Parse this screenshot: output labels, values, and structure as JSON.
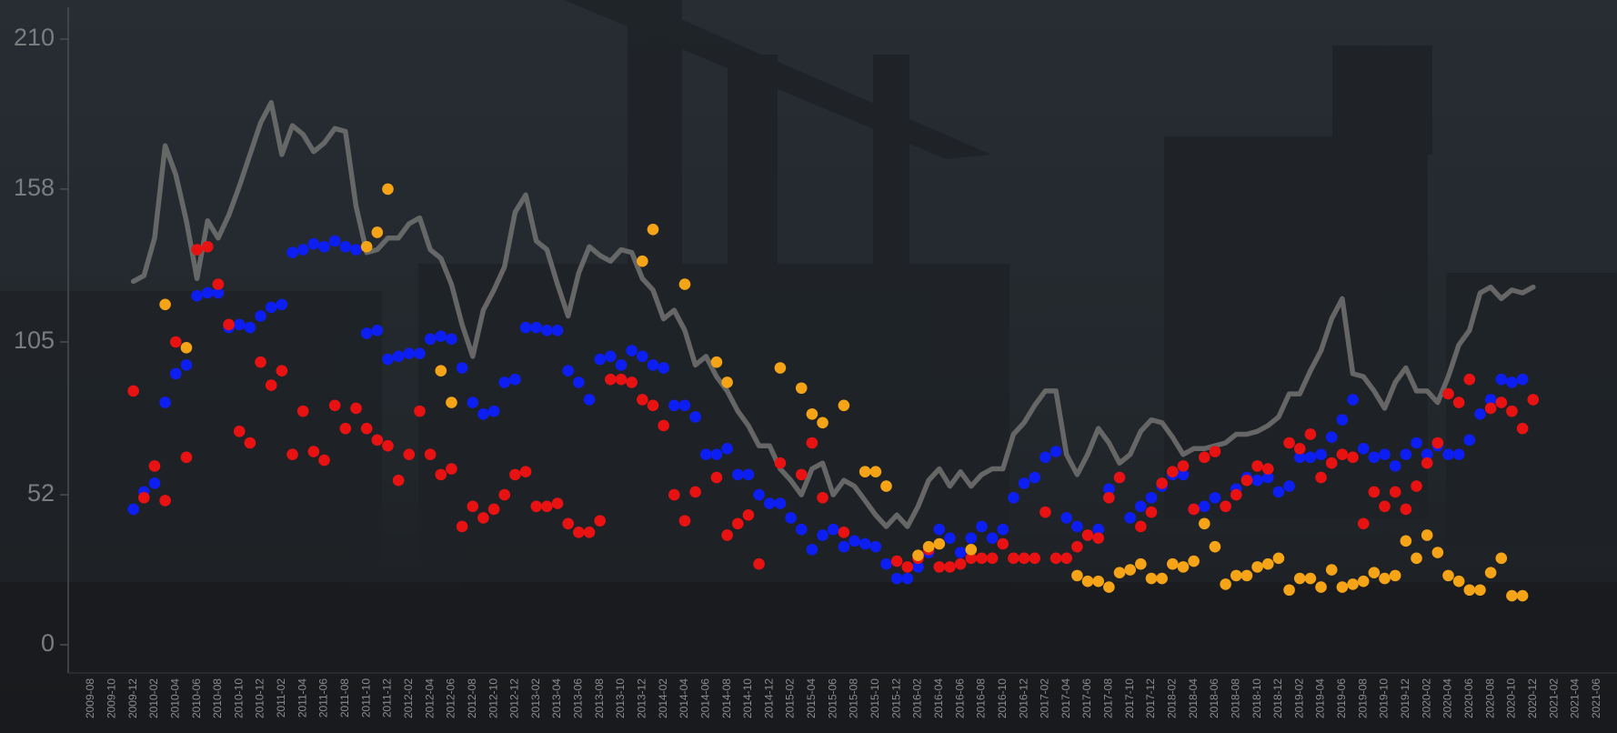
{
  "chart_data": {
    "type": "line-scatter",
    "categories": [
      "2009-08",
      null,
      "2009-10",
      null,
      "2009-12",
      null,
      "2010-02",
      null,
      "2010-04",
      null,
      "2010-06",
      null,
      "2010-08",
      null,
      "2010-10",
      null,
      "2010-12",
      null,
      "2011-02",
      null,
      "2011-04",
      null,
      "2011-06",
      null,
      "2011-08",
      null,
      "2011-10",
      null,
      "2011-12",
      null,
      "2012-02",
      null,
      "2012-04",
      null,
      "2012-06",
      null,
      "2012-08",
      null,
      "2012-10",
      null,
      "2012-12",
      null,
      "2013-02",
      null,
      "2013-04",
      null,
      "2013-06",
      null,
      "2013-08",
      null,
      "2013-10",
      null,
      "2013-12",
      null,
      "2014-02",
      null,
      "2014-04",
      null,
      "2014-06",
      null,
      "2014-08",
      null,
      "2014-10",
      null,
      "2014-12",
      null,
      "2015-02",
      null,
      "2015-04",
      null,
      "2015-06",
      null,
      "2015-08",
      null,
      "2015-10",
      null,
      "2015-12",
      null,
      "2016-02",
      null,
      "2016-04",
      null,
      "2016-06",
      null,
      "2016-08",
      null,
      "2016-10",
      null,
      "2016-12",
      null,
      "2017-02",
      null,
      "2017-04",
      null,
      "2017-06",
      null,
      "2017-08",
      null,
      "2017-10",
      null,
      "2017-12",
      null,
      "2018-02",
      null,
      "2018-04",
      null,
      "2018-06",
      null,
      "2018-08",
      null,
      "2018-10",
      null,
      "2018-12",
      null,
      "2019-02",
      null,
      "2019-04",
      null,
      "2019-06",
      null,
      "2019-08",
      null,
      "2019-10",
      null,
      "2019-12",
      null,
      "2020-02",
      null,
      "2020-04",
      null,
      "2020-06",
      null,
      "2020-08",
      null,
      "2020-10",
      null,
      "2020-12",
      null,
      "2021-02",
      null,
      "2021-04",
      null,
      "2021-06"
    ],
    "series": [
      {
        "kind": "line",
        "color": "#6e6e6e",
        "values": [
          null,
          null,
          null,
          null,
          126,
          128,
          141,
          173,
          163,
          147,
          127,
          147,
          141,
          149,
          159,
          170,
          181,
          188,
          170,
          180,
          177,
          171,
          174,
          179,
          178,
          152,
          136,
          137,
          141,
          141,
          146,
          148,
          137,
          134,
          125,
          111,
          100,
          116,
          123,
          131,
          150,
          156,
          140,
          137,
          125,
          114,
          129,
          138,
          135,
          133,
          137,
          136,
          127,
          123,
          113,
          116,
          109,
          97,
          100,
          93,
          88,
          81,
          76,
          69,
          69,
          61,
          57,
          52,
          61,
          63,
          52,
          57,
          55,
          50,
          45,
          41,
          45,
          41,
          48,
          57,
          61,
          55,
          60,
          55,
          59,
          61,
          61,
          73,
          77,
          83,
          88,
          88,
          66,
          59,
          66,
          75,
          70,
          63,
          66,
          74,
          78,
          77,
          72,
          66,
          68,
          68,
          69,
          70,
          73,
          73,
          74,
          76,
          79,
          87,
          87,
          95,
          102,
          113,
          120,
          94,
          93,
          88,
          82,
          91,
          96,
          88,
          88,
          84,
          93,
          104,
          109,
          122,
          124,
          120,
          123,
          122,
          124,
          null,
          null,
          null,
          null,
          null,
          null
        ]
      },
      {
        "kind": "dots",
        "color": "#0d1ef2",
        "values": [
          null,
          null,
          null,
          null,
          47,
          53,
          56,
          84,
          94,
          97,
          121,
          122,
          122,
          110,
          111,
          110,
          114,
          117,
          118,
          136,
          137,
          139,
          138,
          140,
          138,
          137,
          108,
          109,
          99,
          100,
          101,
          101,
          106,
          107,
          106,
          96,
          84,
          80,
          81,
          91,
          92,
          110,
          110,
          109,
          109,
          95,
          91,
          85,
          99,
          100,
          97,
          102,
          100,
          97,
          96,
          83,
          83,
          79,
          66,
          66,
          68,
          59,
          59,
          52,
          49,
          49,
          44,
          40,
          33,
          38,
          40,
          34,
          36,
          35,
          34,
          28,
          23,
          23,
          27,
          32,
          40,
          37,
          32,
          37,
          41,
          37,
          40,
          51,
          56,
          58,
          65,
          67,
          44,
          41,
          38,
          40,
          54,
          58,
          44,
          48,
          51,
          55,
          59,
          59,
          47,
          48,
          51,
          48,
          54,
          58,
          57,
          58,
          53,
          55,
          65,
          65,
          66,
          72,
          78,
          85,
          68,
          65,
          66,
          62,
          66,
          70,
          66,
          69,
          66,
          66,
          71,
          80,
          85,
          92,
          91,
          92,
          null,
          null,
          null,
          null,
          null,
          null,
          null
        ]
      },
      {
        "kind": "dots",
        "color": "#e81212",
        "values": [
          null,
          null,
          null,
          null,
          88,
          51,
          62,
          50,
          105,
          65,
          137,
          138,
          125,
          111,
          74,
          70,
          98,
          90,
          95,
          66,
          81,
          67,
          64,
          83,
          75,
          82,
          75,
          71,
          69,
          57,
          66,
          81,
          66,
          59,
          61,
          41,
          48,
          44,
          47,
          52,
          59,
          60,
          48,
          48,
          49,
          42,
          39,
          39,
          43,
          92,
          92,
          91,
          85,
          83,
          76,
          52,
          43,
          53,
          null,
          58,
          38,
          42,
          45,
          28,
          null,
          63,
          null,
          59,
          70,
          51,
          null,
          39,
          null,
          null,
          null,
          null,
          29,
          27,
          30,
          33,
          27,
          27,
          28,
          30,
          30,
          30,
          35,
          30,
          30,
          30,
          46,
          30,
          30,
          34,
          38,
          37,
          51,
          58,
          null,
          41,
          46,
          56,
          60,
          62,
          47,
          65,
          67,
          48,
          52,
          57,
          62,
          61,
          null,
          70,
          68,
          73,
          58,
          63,
          66,
          65,
          42,
          53,
          48,
          53,
          47,
          55,
          63,
          70,
          87,
          84,
          92,
          null,
          82,
          84,
          81,
          75,
          85,
          null,
          null,
          null,
          null,
          null,
          null
        ]
      },
      {
        "kind": "dots",
        "color": "#f5a418",
        "values": [
          null,
          null,
          null,
          null,
          null,
          null,
          null,
          118,
          null,
          103,
          null,
          null,
          null,
          null,
          null,
          null,
          null,
          null,
          null,
          null,
          null,
          null,
          null,
          null,
          null,
          null,
          138,
          143,
          158,
          null,
          null,
          null,
          null,
          95,
          84,
          null,
          null,
          null,
          null,
          null,
          null,
          null,
          null,
          null,
          null,
          null,
          null,
          null,
          null,
          null,
          null,
          null,
          133,
          144,
          null,
          null,
          125,
          null,
          null,
          98,
          91,
          null,
          null,
          null,
          null,
          96,
          null,
          89,
          80,
          77,
          null,
          83,
          null,
          60,
          60,
          55,
          null,
          null,
          31,
          34,
          35,
          null,
          null,
          33,
          null,
          null,
          null,
          null,
          null,
          null,
          null,
          null,
          null,
          24,
          22,
          22,
          20,
          25,
          26,
          28,
          23,
          23,
          28,
          27,
          29,
          42,
          34,
          21,
          24,
          24,
          27,
          28,
          30,
          19,
          23,
          23,
          20,
          26,
          20,
          21,
          22,
          25,
          23,
          24,
          36,
          30,
          38,
          32,
          24,
          22,
          19,
          19,
          25,
          30,
          17,
          17,
          null,
          null,
          null,
          null,
          null,
          null,
          null
        ]
      }
    ],
    "ylim": [
      0,
      210
    ],
    "yticks": [
      0,
      52,
      105,
      158,
      210
    ]
  }
}
